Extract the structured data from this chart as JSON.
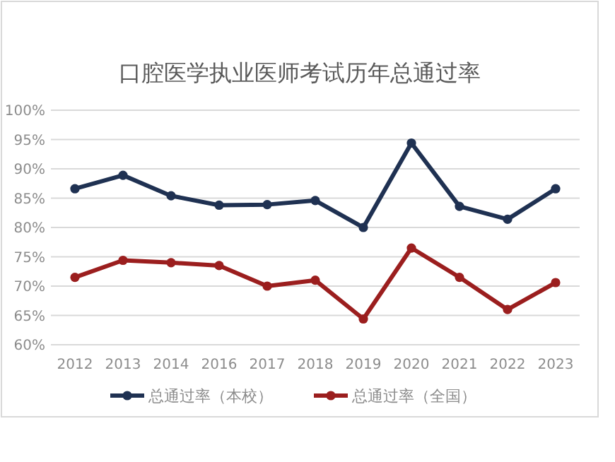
{
  "chart_data": {
    "type": "line",
    "title": "口腔医学执业医师考试历年总通过率",
    "categories": [
      "2012",
      "2013",
      "2014",
      "2016",
      "2017",
      "2018",
      "2019",
      "2020",
      "2021",
      "2022",
      "2023"
    ],
    "series": [
      {
        "name": "总通过率（本校）",
        "color": "#1f3152",
        "values": [
          86.6,
          88.9,
          85.4,
          83.8,
          83.9,
          84.6,
          80.0,
          94.4,
          83.6,
          81.4,
          86.6
        ]
      },
      {
        "name": "总通过率（全国）",
        "color": "#9b1e1e",
        "values": [
          71.5,
          74.4,
          74.0,
          73.5,
          70.0,
          71.0,
          64.4,
          76.5,
          71.5,
          66.0,
          70.6
        ]
      }
    ],
    "ylim": [
      60,
      100
    ],
    "yticks": [
      {
        "value": 60,
        "label": "60%"
      },
      {
        "value": 65,
        "label": "65%"
      },
      {
        "value": 70,
        "label": "70%"
      },
      {
        "value": 75,
        "label": "75%"
      },
      {
        "value": 80,
        "label": "80%"
      },
      {
        "value": 85,
        "label": "85%"
      },
      {
        "value": 90,
        "label": "90%"
      },
      {
        "value": 95,
        "label": "95%"
      },
      {
        "value": 100,
        "label": "100%"
      }
    ],
    "grid": "y",
    "legend": "bottom",
    "marker": "circle",
    "line_style": "solid"
  }
}
